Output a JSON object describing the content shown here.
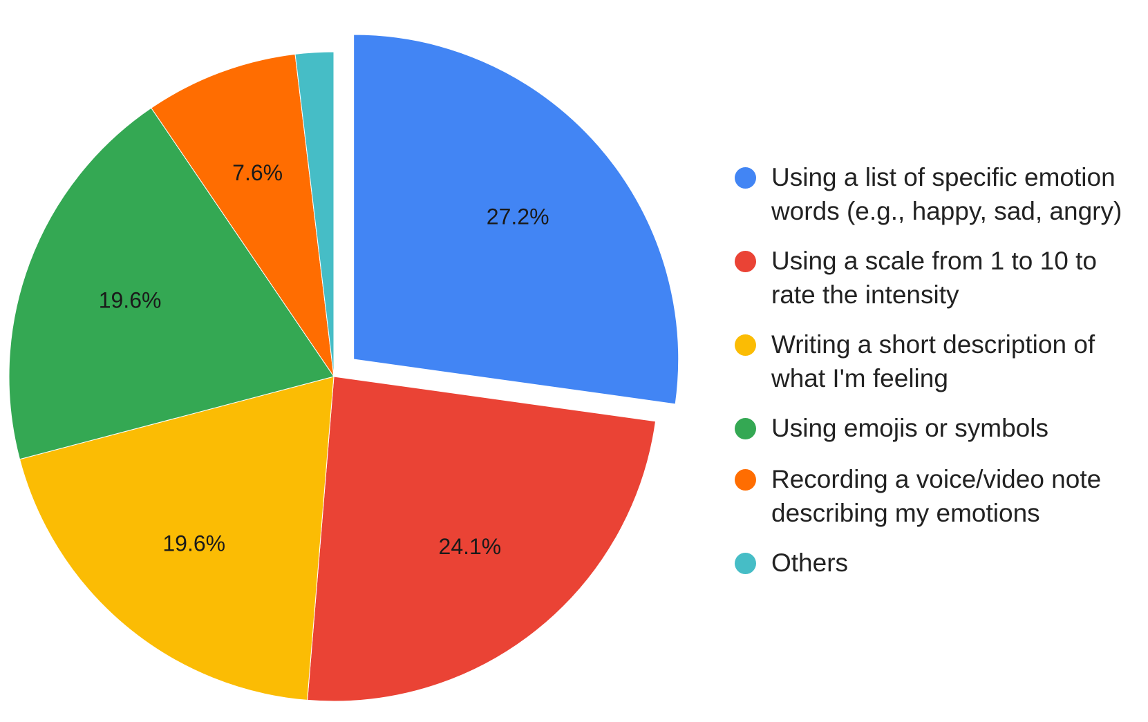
{
  "chart_data": {
    "type": "pie",
    "title": "",
    "slices": [
      {
        "name": "Using a list of specific emotion words (e.g., happy, sad, angry)",
        "value": 27.2,
        "label": "27.2%",
        "color": "#4285F4",
        "exploded": true
      },
      {
        "name": "Using a scale from 1 to 10 to rate the intensity",
        "value": 24.1,
        "label": "24.1%",
        "color": "#EA4335"
      },
      {
        "name": "Writing a short description of what I'm feeling",
        "value": 19.6,
        "label": "19.6%",
        "color": "#FBBC04"
      },
      {
        "name": "Using emojis or symbols",
        "value": 19.6,
        "label": "19.6%",
        "color": "#34A853"
      },
      {
        "name": "Recording a voice/video note describing my emotions",
        "value": 7.6,
        "label": "7.6%",
        "color": "#FF6D01"
      },
      {
        "name": "Others",
        "value": 1.9,
        "label": "",
        "color": "#46BDC6"
      }
    ],
    "legend_position": "right"
  }
}
